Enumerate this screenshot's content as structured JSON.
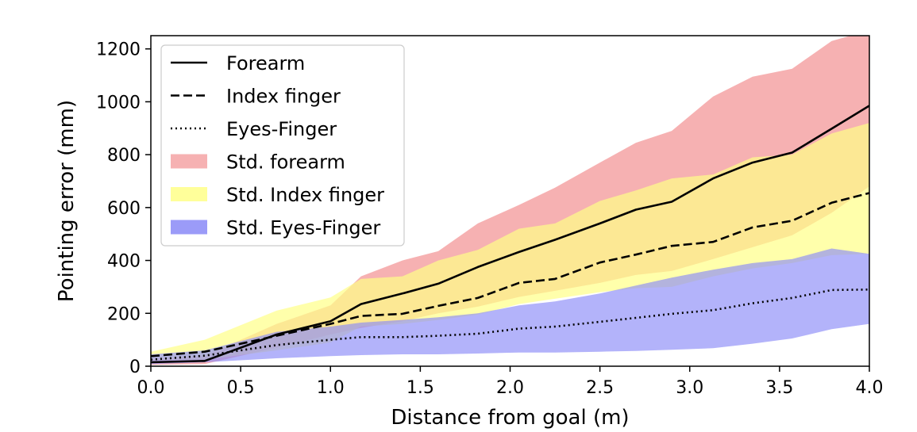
{
  "chart_data": {
    "type": "line",
    "title": "",
    "xlabel": "Distance from goal (m)",
    "ylabel": "Pointing error (mm)",
    "xlim": [
      0,
      4
    ],
    "ylim": [
      0,
      1250
    ],
    "xticks": [
      0.0,
      0.5,
      1.0,
      1.5,
      2.0,
      2.5,
      3.0,
      3.5,
      4.0
    ],
    "xtick_labels": [
      "0.0",
      "0.5",
      "1.0",
      "1.5",
      "2.0",
      "2.5",
      "3.0",
      "3.5",
      "4.0"
    ],
    "yticks": [
      0,
      200,
      400,
      600,
      800,
      1000,
      1200
    ],
    "ytick_labels": [
      "0",
      "200",
      "400",
      "600",
      "800",
      "1000",
      "1200"
    ],
    "grid": false,
    "legend_position": "top-left",
    "x": [
      0.0,
      0.3,
      0.7,
      1.0,
      1.17,
      1.4,
      1.6,
      1.82,
      2.05,
      2.25,
      2.5,
      2.7,
      2.9,
      3.13,
      3.35,
      3.57,
      3.79,
      4.0
    ],
    "series": [
      {
        "name": "Forearm",
        "style": "solid",
        "color": "#000000",
        "values": [
          15,
          20,
          120,
          170,
          235,
          275,
          312,
          375,
          432,
          478,
          540,
          592,
          622,
          710,
          770,
          808,
          898,
          985
        ]
      },
      {
        "name": "Index finger",
        "style": "dashed",
        "color": "#000000",
        "values": [
          38,
          55,
          115,
          160,
          190,
          198,
          228,
          258,
          315,
          330,
          392,
          422,
          455,
          470,
          525,
          550,
          618,
          655
        ]
      },
      {
        "name": "Eyes-Finger",
        "style": "dotted",
        "color": "#000000",
        "values": [
          25,
          40,
          80,
          100,
          110,
          110,
          115,
          123,
          142,
          150,
          168,
          183,
          198,
          212,
          238,
          258,
          288,
          290
        ]
      }
    ],
    "bands": [
      {
        "name": "Std. forearm",
        "color": "#f4a3a5",
        "opacity": 0.85,
        "upper": [
          28,
          40,
          160,
          230,
          340,
          400,
          435,
          540,
          610,
          675,
          770,
          845,
          890,
          1020,
          1095,
          1125,
          1230,
          1270
        ],
        "lower": [
          5,
          8,
          70,
          120,
          145,
          170,
          200,
          225,
          262,
          285,
          315,
          345,
          360,
          405,
          450,
          495,
          580,
          680
        ]
      },
      {
        "name": "Std. Index finger",
        "color": "#ffff88",
        "opacity": 0.7,
        "upper": [
          55,
          100,
          210,
          260,
          330,
          340,
          400,
          440,
          520,
          540,
          625,
          665,
          710,
          725,
          790,
          800,
          880,
          920
        ],
        "lower": [
          20,
          25,
          60,
          90,
          150,
          160,
          175,
          195,
          235,
          255,
          280,
          295,
          300,
          340,
          370,
          390,
          420,
          425
        ]
      },
      {
        "name": "Std. Eyes-Finger",
        "color": "#8a8af7",
        "opacity": 0.65,
        "upper": [
          45,
          60,
          130,
          150,
          165,
          175,
          185,
          200,
          230,
          245,
          275,
          305,
          335,
          365,
          390,
          405,
          445,
          425
        ],
        "lower": [
          8,
          15,
          30,
          38,
          42,
          45,
          45,
          48,
          52,
          52,
          55,
          58,
          62,
          68,
          85,
          105,
          140,
          160
        ]
      }
    ],
    "legend": [
      {
        "label": "Forearm",
        "kind": "line",
        "style": "solid"
      },
      {
        "label": "Index finger",
        "kind": "line",
        "style": "dashed"
      },
      {
        "label": "Eyes-Finger",
        "kind": "line",
        "style": "dotted"
      },
      {
        "label": "Std. forearm",
        "kind": "patch",
        "color": "#f4a3a5"
      },
      {
        "label": "Std. Index finger",
        "kind": "patch",
        "color": "#ffff88"
      },
      {
        "label": "Std. Eyes-Finger",
        "kind": "patch",
        "color": "#8a8af7"
      }
    ]
  }
}
